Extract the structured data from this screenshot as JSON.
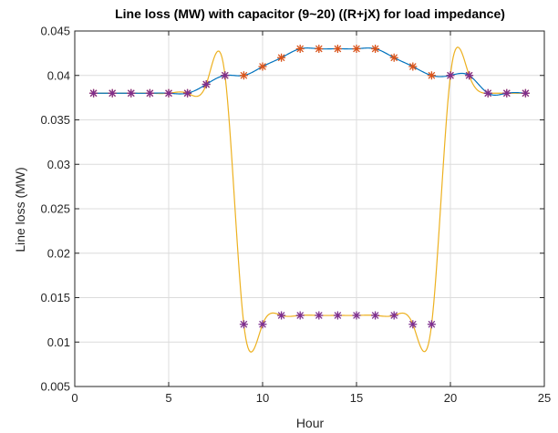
{
  "chart_data": {
    "type": "line",
    "title": "Line loss (MW) with capacitor (9~20) ((R+jX) for load impedance)",
    "xlabel": "Hour",
    "ylabel": "Line loss (MW)",
    "xlim": [
      0,
      25
    ],
    "ylim": [
      0.005,
      0.045
    ],
    "xticks": [
      0,
      5,
      10,
      15,
      20,
      25
    ],
    "yticks": [
      0.005,
      0.01,
      0.015,
      0.02,
      0.025,
      0.03,
      0.035,
      0.04,
      0.045
    ],
    "xtick_labels": [
      "0",
      "5",
      "10",
      "15",
      "20",
      "25"
    ],
    "ytick_labels": [
      "0.005",
      "0.01",
      "0.015",
      "0.02",
      "0.025",
      "0.03",
      "0.035",
      "0.04",
      "0.045"
    ],
    "grid": true,
    "series": [
      {
        "style": "orange star markers with blue interpolated line",
        "marker_color": "#D95319",
        "line_color": "#0072BD",
        "x": [
          1,
          2,
          3,
          4,
          5,
          6,
          7,
          8,
          9,
          10,
          11,
          12,
          13,
          14,
          15,
          16,
          17,
          18,
          19,
          20,
          21,
          22,
          23,
          24
        ],
        "values": [
          0.038,
          0.038,
          0.038,
          0.038,
          0.038,
          0.038,
          0.039,
          0.04,
          0.04,
          0.041,
          0.042,
          0.043,
          0.043,
          0.043,
          0.043,
          0.043,
          0.042,
          0.041,
          0.04,
          0.04,
          0.04,
          0.038,
          0.038,
          0.038
        ]
      },
      {
        "style": "purple star markers with yellow interpolated line",
        "marker_color": "#7E2F8E",
        "line_color": "#EDB120",
        "x": [
          1,
          2,
          3,
          4,
          5,
          6,
          7,
          8,
          9,
          10,
          11,
          12,
          13,
          14,
          15,
          16,
          17,
          18,
          19,
          20,
          21,
          22,
          23,
          24
        ],
        "values": [
          0.038,
          0.038,
          0.038,
          0.038,
          0.038,
          0.038,
          0.039,
          0.04,
          0.012,
          0.012,
          0.013,
          0.013,
          0.013,
          0.013,
          0.013,
          0.013,
          0.013,
          0.012,
          0.012,
          0.04,
          0.04,
          0.038,
          0.038,
          0.038
        ]
      }
    ]
  }
}
